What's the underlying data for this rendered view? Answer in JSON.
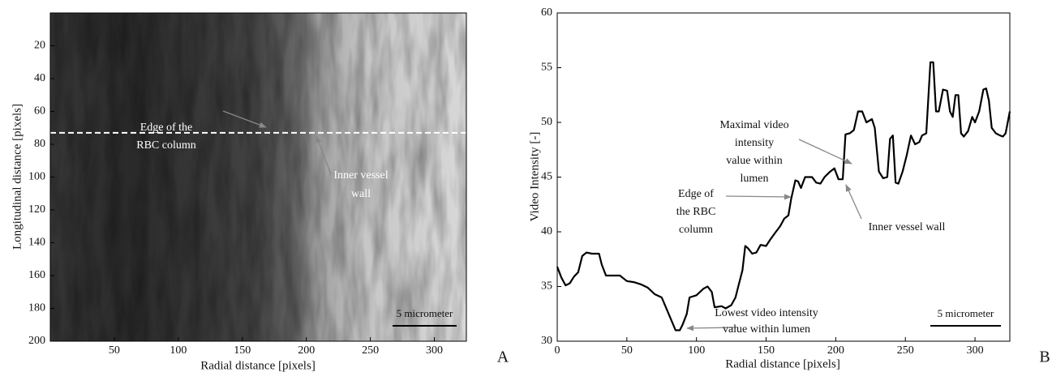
{
  "chart_data": [
    {
      "type": "image",
      "panel_label": "A",
      "xlabel": "Radial distance [pixels]",
      "ylabel": "Longitudinal distance [pixels]",
      "xlim": [
        0,
        325
      ],
      "ylim": [
        200,
        0
      ],
      "xticks": [
        50,
        100,
        150,
        200,
        250,
        300
      ],
      "yticks": [
        20,
        40,
        60,
        80,
        100,
        120,
        140,
        160,
        180,
        200
      ],
      "hline": 73,
      "hline_color": "#ffffff",
      "annotations": [
        {
          "lines": [
            "Edge of the",
            "RBC column"
          ]
        },
        {
          "lines": [
            "Inner vessel",
            "wall"
          ]
        }
      ],
      "scale_bar": "5 micrometer"
    },
    {
      "type": "line",
      "panel_label": "B",
      "xlabel": "Radial distance [pixels]",
      "ylabel": "Video Intensity [-]",
      "xlim": [
        0,
        325
      ],
      "ylim": [
        30,
        60
      ],
      "xticks": [
        0,
        50,
        100,
        150,
        200,
        250,
        300
      ],
      "yticks": [
        30,
        35,
        40,
        45,
        50,
        55,
        60
      ],
      "color": "#000000",
      "x": [
        0,
        3,
        6,
        9,
        12,
        15,
        18,
        21,
        25,
        30,
        32,
        35,
        40,
        45,
        50,
        55,
        60,
        65,
        70,
        75,
        80,
        85,
        88,
        90,
        93,
        95,
        100,
        105,
        108,
        111,
        113,
        118,
        121,
        125,
        128,
        130,
        133,
        135,
        137,
        140,
        143,
        146,
        150,
        153,
        157,
        160,
        163,
        166,
        168,
        171,
        173,
        175,
        178,
        183,
        186,
        189,
        192,
        196,
        199,
        202,
        205,
        207,
        210,
        213,
        216,
        219,
        222,
        226,
        228,
        231,
        234,
        237,
        239,
        241,
        243,
        245,
        248,
        251,
        254,
        257,
        260,
        262,
        265,
        268,
        270,
        272,
        274,
        277,
        280,
        282,
        284,
        286,
        288,
        290,
        292,
        295,
        298,
        300,
        303,
        306,
        308,
        310,
        312,
        315,
        318,
        320,
        322,
        325
      ],
      "values": [
        36.8,
        35.8,
        35.1,
        35.3,
        35.9,
        36.3,
        37.8,
        38.1,
        38.0,
        38.0,
        37.0,
        36.0,
        36.0,
        36.0,
        35.5,
        35.4,
        35.2,
        34.9,
        34.3,
        34.0,
        32.5,
        31.0,
        31.0,
        31.5,
        32.5,
        34.0,
        34.2,
        34.8,
        35.0,
        34.5,
        33.1,
        33.2,
        33.0,
        33.3,
        34.0,
        35.0,
        36.5,
        38.7,
        38.5,
        38.0,
        38.1,
        38.8,
        38.7,
        39.3,
        40.0,
        40.5,
        41.2,
        41.5,
        43.0,
        44.7,
        44.6,
        44.0,
        45.0,
        45.0,
        44.5,
        44.4,
        45.0,
        45.5,
        45.8,
        44.8,
        44.8,
        48.9,
        49.0,
        49.3,
        51.0,
        51.0,
        50.0,
        50.3,
        49.5,
        45.5,
        44.9,
        45.0,
        48.5,
        48.8,
        44.5,
        44.4,
        45.5,
        47.0,
        48.8,
        48.0,
        48.2,
        48.8,
        49.0,
        55.5,
        55.5,
        51.0,
        51.0,
        53.0,
        52.9,
        51.0,
        50.5,
        52.5,
        52.5,
        49.0,
        48.7,
        49.2,
        50.5,
        50.0,
        51.0,
        53.0,
        53.1,
        52.0,
        49.5,
        49.0,
        48.8,
        48.7,
        49.0,
        51.0
      ],
      "annotations": [
        {
          "lines": [
            "Maximal video",
            "intensity",
            "value within",
            "lumen"
          ]
        },
        {
          "lines": [
            "Edge of",
            "the RBC",
            "column"
          ]
        },
        {
          "lines": [
            "Inner vessel wall"
          ]
        },
        {
          "lines": [
            "Lowest video intensity",
            "value within lumen"
          ]
        }
      ],
      "scale_bar": "5 micrometer"
    }
  ]
}
